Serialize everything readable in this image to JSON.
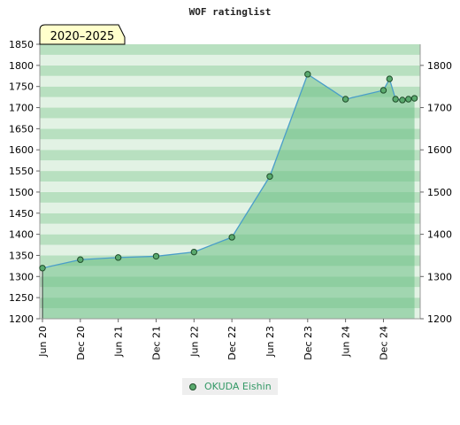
{
  "chart_data": {
    "type": "area",
    "title": "WOF ratinglist",
    "period_label": "2020–2025",
    "x_tick_labels": [
      "Jun 20",
      "Dec 20",
      "Jun 21",
      "Dec 21",
      "Jun 22",
      "Dec 22",
      "Jun 23",
      "Dec 23",
      "Jun 24",
      "Dec 24"
    ],
    "y_left_ticks": [
      1200,
      1250,
      1300,
      1350,
      1400,
      1450,
      1500,
      1550,
      1600,
      1650,
      1700,
      1750,
      1800,
      1850
    ],
    "y_right_ticks": [
      1200,
      1300,
      1400,
      1500,
      1600,
      1700,
      1800
    ],
    "ylim": [
      1200,
      1850
    ],
    "xlim": [
      2020.42,
      2025.37
    ],
    "series": [
      {
        "name": "OKUDA Eishin",
        "x": [
          2020.42,
          2020.92,
          2021.42,
          2021.92,
          2022.42,
          2022.92,
          2023.42,
          2023.92,
          2024.42,
          2024.92,
          2025.0,
          2025.08,
          2025.17,
          2025.25,
          2025.33
        ],
        "y": [
          1320,
          1340,
          1345,
          1348,
          1358,
          1393,
          1537,
          1779,
          1720,
          1741,
          1768,
          1720,
          1718,
          1720,
          1722
        ]
      }
    ],
    "colors": {
      "line": "#4a9ec9",
      "area": "#6cbf85",
      "marker_fill": "#5aaa6e",
      "marker_stroke": "#1f4d2a",
      "label_bg": "#ffffcc",
      "legend_text": "#339966"
    }
  }
}
